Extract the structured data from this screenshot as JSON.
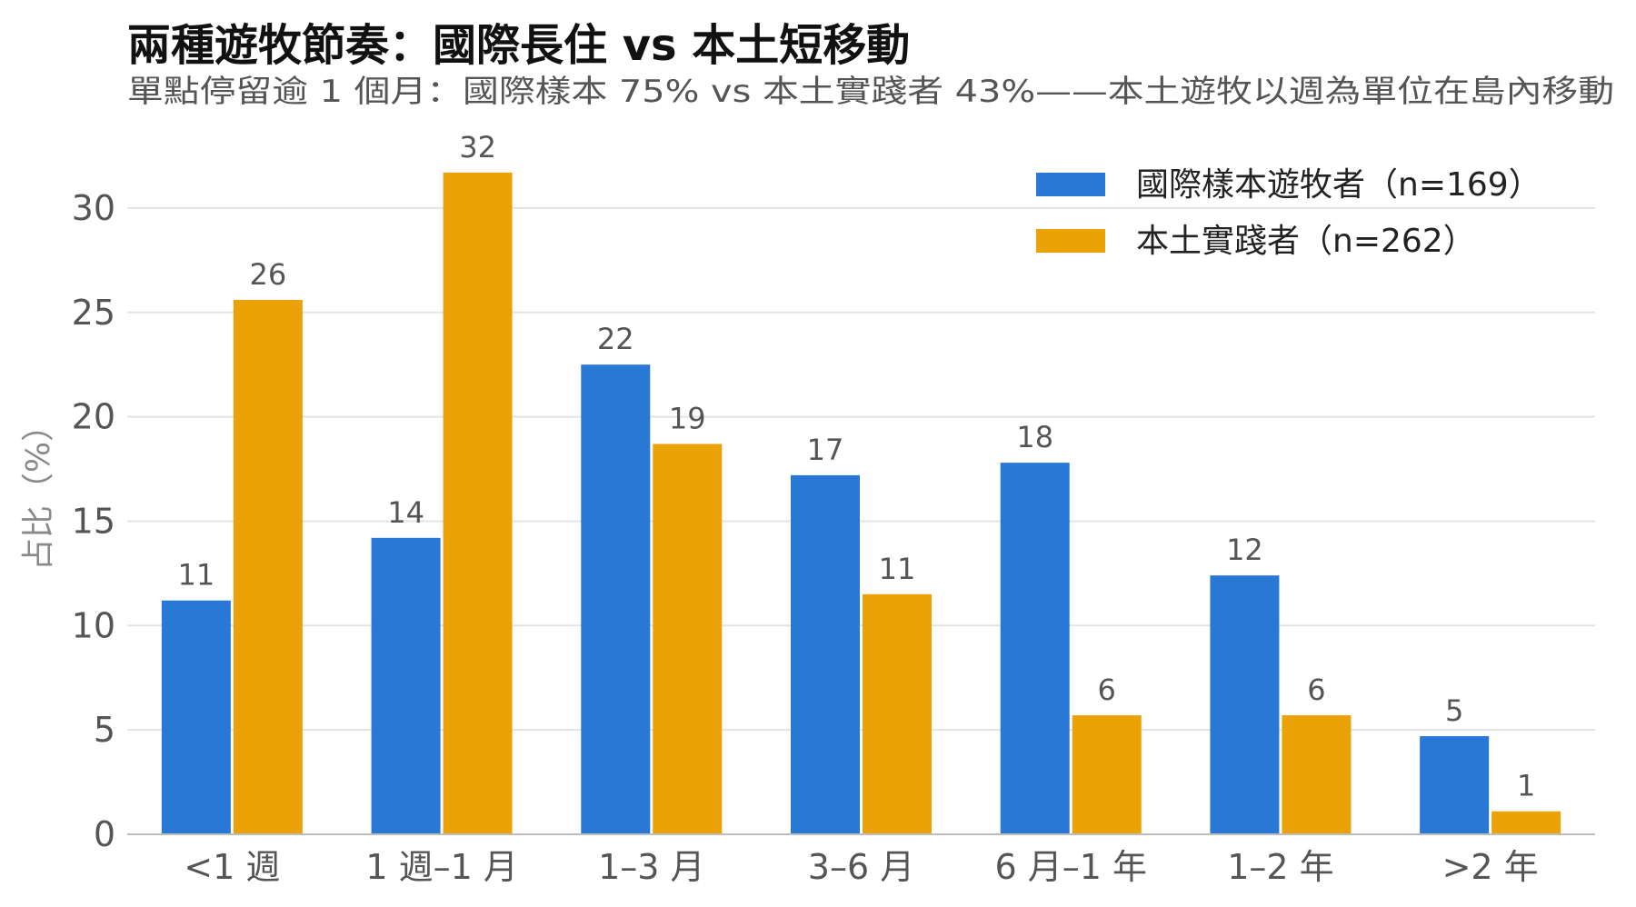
{
  "chart_data": {
    "type": "bar",
    "title": "兩種遊牧節奏：國際長住 vs 本土短移動",
    "subtitle": "單點停留逾 1 個月：國際樣本 75% vs 本土實踐者 43%——本土遊牧以週為單位在島內移動",
    "xlabel": "",
    "ylabel": "占比（%）",
    "ylim": [
      0,
      33
    ],
    "yticks": [
      0,
      5,
      10,
      15,
      20,
      25,
      30
    ],
    "grid": true,
    "legend_position": "top-right",
    "categories": [
      "<1 週",
      "1 週–1 月",
      "1–3 月",
      "3–6 月",
      "6 月–1 年",
      "1–2 年",
      ">2 年"
    ],
    "series": [
      {
        "name": "國際樣本遊牧者（n=169）",
        "color": "#2a78d6",
        "values": [
          11.2,
          14.2,
          22.5,
          17.2,
          17.8,
          12.4,
          4.7
        ],
        "labels": [
          "11",
          "14",
          "22",
          "17",
          "18",
          "12",
          "5"
        ]
      },
      {
        "name": "本土實踐者（n=262）",
        "color": "#eba206",
        "values": [
          25.6,
          31.7,
          18.7,
          11.5,
          5.7,
          5.7,
          1.1
        ],
        "labels": [
          "26",
          "32",
          "19",
          "11",
          "6",
          "6",
          "1"
        ]
      }
    ]
  }
}
